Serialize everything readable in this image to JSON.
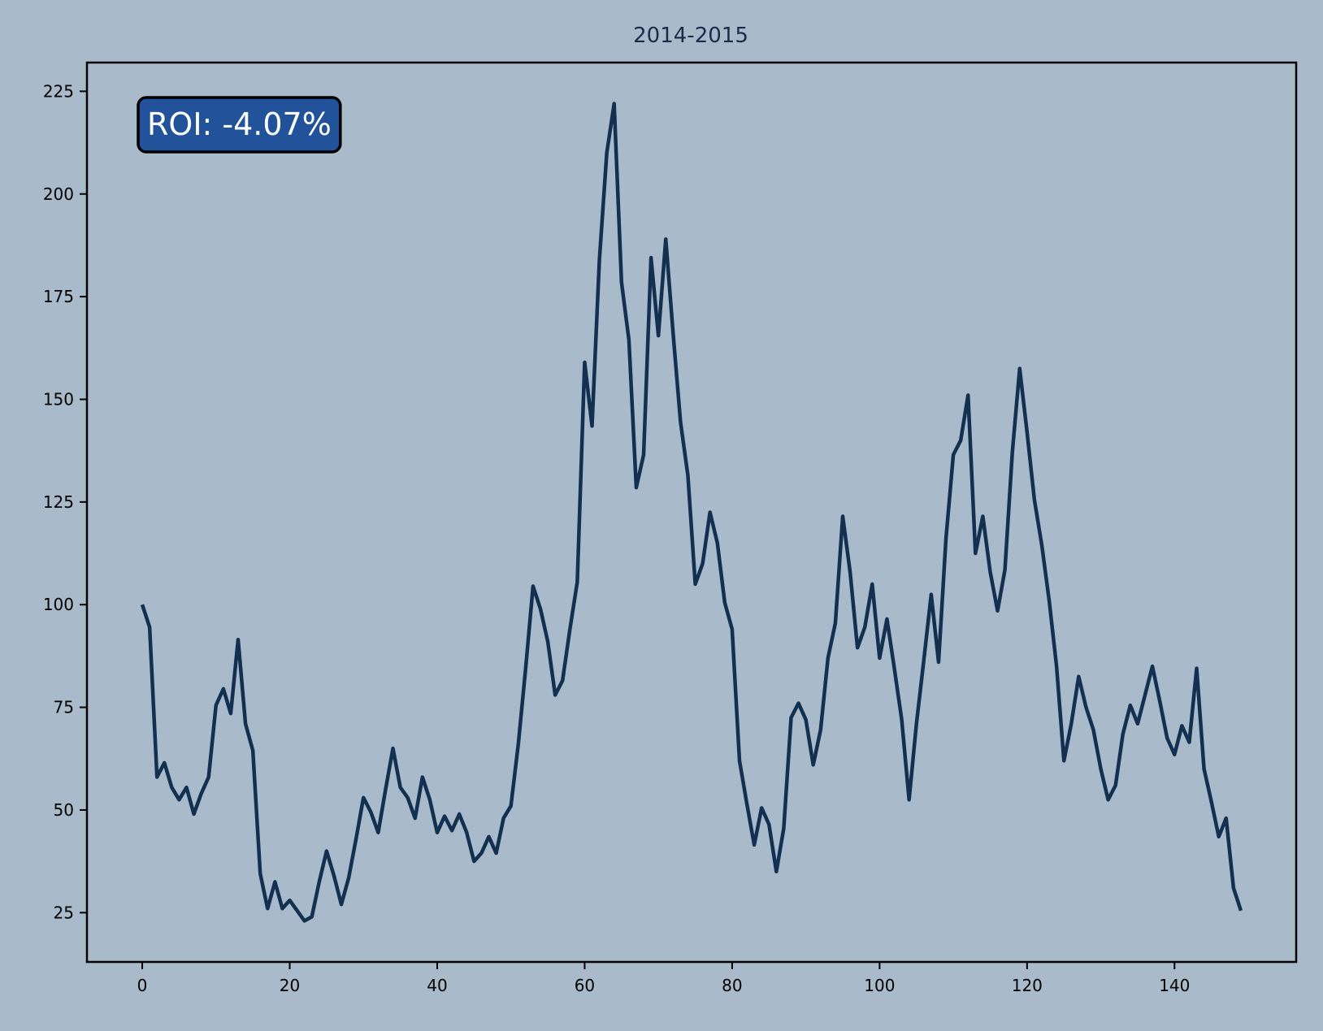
{
  "chart_data": {
    "type": "line",
    "title": "2014-2015",
    "xlabel": "",
    "ylabel": "",
    "xlim": [
      -7.5,
      156.5
    ],
    "ylim": [
      13,
      232
    ],
    "x_ticks": [
      0,
      20,
      40,
      60,
      80,
      100,
      120,
      140
    ],
    "y_ticks": [
      25,
      50,
      75,
      100,
      125,
      150,
      175,
      200,
      225
    ],
    "grid": false,
    "legend": "none",
    "annotation": {
      "text": "ROI: -4.07%",
      "position": "top-left"
    },
    "colors": {
      "background": "#a9bacb",
      "line": "#12304f",
      "annotation_fill": "#22539a",
      "annotation_border": "#000000",
      "title": "#1d2b4a"
    },
    "series": [
      {
        "values": [
          100,
          94.5,
          58,
          61.5,
          55.5,
          52.5,
          55.5,
          49,
          54,
          58,
          75.5,
          79.5,
          73.5,
          91.5,
          71,
          64.5,
          34.5,
          26,
          32.5,
          26,
          28,
          25.5,
          23,
          24,
          32.5,
          40,
          34,
          27,
          33.5,
          43,
          53,
          49.5,
          44.5,
          55,
          65,
          55.5,
          53,
          48,
          58,
          52.5,
          44.5,
          48.5,
          45,
          49,
          44.5,
          37.5,
          39.5,
          43.5,
          39.5,
          48,
          51,
          66,
          84.5,
          104.5,
          99,
          91,
          78,
          81.5,
          94,
          105.5,
          159,
          143.5,
          184,
          210,
          222,
          178.5,
          164.5,
          128.5,
          136.5,
          184.5,
          165.5,
          189,
          166,
          144.5,
          131.5,
          105,
          110,
          122.5,
          115,
          100.5,
          94,
          62,
          51.5,
          41.5,
          50.5,
          46.5,
          35,
          45.5,
          72.5,
          76,
          72,
          61,
          69.5,
          87,
          95.5,
          121.5,
          108,
          89.5,
          94.5,
          105,
          87,
          96.5,
          84.5,
          72,
          52.5,
          71,
          86.5,
          102.5,
          86,
          116,
          136.5,
          140,
          151,
          112.5,
          121.5,
          108,
          98.5,
          108.5,
          137,
          157.5,
          142,
          125.5,
          114.5,
          101,
          85,
          62,
          71,
          82.5,
          75,
          69.5,
          60,
          52.5,
          56,
          68.5,
          75.5,
          71,
          78,
          85,
          76.5,
          67.5,
          63.5,
          70.5,
          66.5,
          84.5,
          60,
          52,
          43.5,
          48,
          31,
          25.5
        ]
      }
    ]
  }
}
